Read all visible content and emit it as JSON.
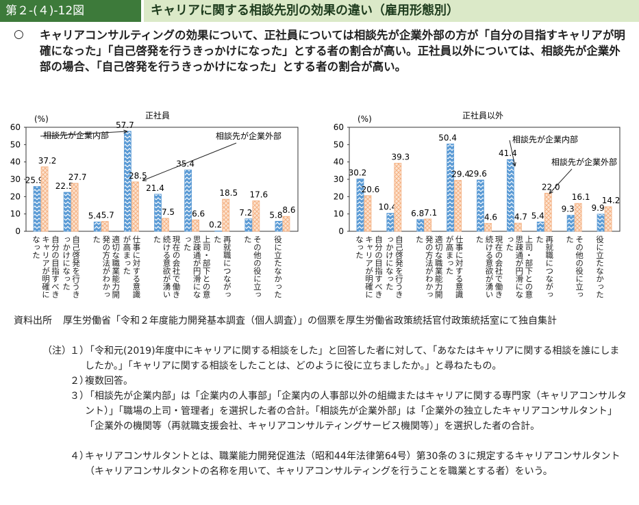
{
  "header": {
    "figure_no": "第２-(４)-12図",
    "title": "キャリアに関する相談先別の効果の違い（雇用形態別）"
  },
  "summary": {
    "marker": "○",
    "text": "キャリアコンサルティングの効果について、正社員については相談先が企業外部の方が「自分の目指すキャリアが明確になった」「自己啓発を行うきっかけになった」とする者の割合が高い。正社員以外については、相談先が企業外部の場合、「自己啓発を行うきっかけになった」とする者の割合が高い。"
  },
  "chart_data": [
    {
      "type": "bar",
      "title": "正社員",
      "y_label": "(%)",
      "categories": [
        "自分の目指すべきキャリアが明確になった",
        "自己啓発を行うきっかけになった",
        "適切な職業能力開発の方法がわかった",
        "仕事に対する意識が高まった",
        "現在の会社で働き続ける意欲が湧いた",
        "上司・部下との意思疎通が円滑になった",
        "再就職につながった",
        "その他の役に立った",
        "役に立たなかった"
      ],
      "series": [
        {
          "name": "相談先が企業内部",
          "color": "#5b9bd5",
          "values": [
            25.9,
            22.5,
            5.4,
            57.7,
            21.4,
            35.4,
            0.2,
            7.2,
            5.8
          ]
        },
        {
          "name": "相談先が企業外部",
          "color": "#f4b183",
          "values": [
            37.2,
            27.7,
            5.7,
            28.5,
            7.5,
            6.6,
            18.5,
            17.6,
            8.6
          ]
        }
      ],
      "ylim": [
        0,
        60
      ],
      "yticks": [
        0,
        10,
        20,
        30,
        40,
        50,
        60
      ]
    },
    {
      "type": "bar",
      "title": "正社員以外",
      "y_label": "(%)",
      "categories": [
        "自分の目指すべきキャリアが明確になった",
        "自己啓発を行うきっかけになった",
        "適切な職業能力開発の方法がわかった",
        "仕事に対する意識が高まった",
        "現在の会社で働き続ける意欲が湧いた",
        "上司・部下との意思疎通が円滑になった",
        "再就職につながった",
        "その他の役に立った",
        "役に立たなかった"
      ],
      "series": [
        {
          "name": "相談先が企業内部",
          "color": "#5b9bd5",
          "values": [
            30.2,
            10.4,
            6.8,
            50.4,
            29.6,
            41.4,
            5.4,
            9.3,
            9.9
          ]
        },
        {
          "name": "相談先が企業外部",
          "color": "#f4b183",
          "values": [
            20.6,
            39.3,
            7.1,
            29.4,
            4.6,
            4.7,
            22.0,
            16.1,
            14.2
          ],
          "value_labels": [
            "20.6",
            "39.3",
            "7.1",
            "29.4",
            "4.6",
            "4.7",
            "22.0",
            "16.1",
            "14.2"
          ]
        }
      ],
      "ylim": [
        0,
        60
      ],
      "yticks": [
        0,
        10,
        20,
        30,
        40,
        50,
        60
      ]
    }
  ],
  "source": {
    "label": "資料出所",
    "text": "厚生労働省「令和２年度能力開発基本調査（個人調査）」の個票を厚生労働省政策統括官付政策統括室にて独自集計"
  },
  "notes": {
    "label": "（注）",
    "items": [
      {
        "num": "１）",
        "text": "「令和元(2019)年度中にキャリアに関する相談をした」と回答した者に対して、「あなたはキャリアに関する相談を誰にしましたか。」「キャリアに関する相談をしたことは、どのように役に立ちましたか。」と尋ねたもの。"
      },
      {
        "num": "２）",
        "text": "複数回答。"
      },
      {
        "num": "３）",
        "text": "「相談先が企業内部」は「企業内の人事部」「企業内の人事部以外の組織またはキャリアに関する専門家（キャリアコンサルタント）」「職場の上司・管理者」を選択した者の合計。「相談先が企業外部」は「企業外の独立したキャリアコンサルタント」「企業外の機関等（再就職支援会社、キャリアコンサルティングサービス機関等）」を選択した者の合計。"
      },
      {
        "num": "４）",
        "text": "キャリアコンサルタントとは、職業能力開発促進法（昭和44年法律第64号）第30条の３に規定するキャリアコンサルタント（キャリアコンサルタントの名称を用いて、キャリアコンサルティングを行うことを職業とする者）をいう。"
      }
    ]
  }
}
